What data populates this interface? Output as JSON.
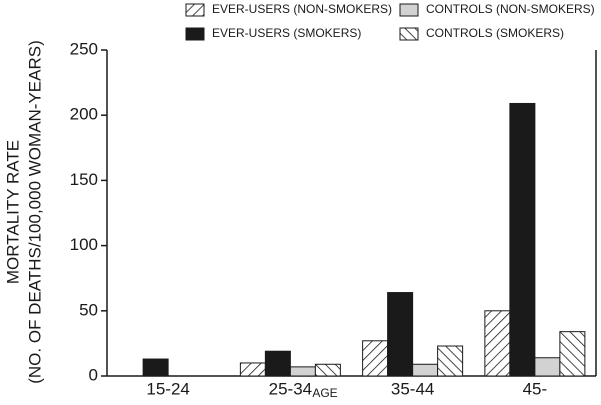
{
  "chart_data": {
    "type": "bar",
    "categories": [
      "15-24",
      "25-34",
      "35-44",
      "45-"
    ],
    "x_label": "AGE",
    "y_label": [
      "MORTALITY RATE",
      "(NO. OF DEATHS/100,000 WOMAN-YEARS)"
    ],
    "ylim": [
      0,
      250
    ],
    "yticks": [
      0,
      50,
      100,
      150,
      200,
      250
    ],
    "series": [
      {
        "name": "EVER-USERS (NON-SMOKERS)",
        "color": "#1a1a1a",
        "pattern": "forward-hatch",
        "values": [
          null,
          10,
          27,
          50
        ]
      },
      {
        "name": "EVER-USERS (SMOKERS)",
        "color": "#1a1a1a",
        "pattern": "solid",
        "values": [
          13,
          19,
          64,
          209
        ]
      },
      {
        "name": "CONTROLS (NON-SMOKERS)",
        "color": "#d2d2d2",
        "pattern": "solid",
        "values": [
          null,
          7,
          9,
          14
        ]
      },
      {
        "name": "CONTROLS (SMOKERS)",
        "color": "#1a1a1a",
        "pattern": "back-hatch",
        "values": [
          null,
          9,
          23,
          34
        ]
      }
    ]
  }
}
